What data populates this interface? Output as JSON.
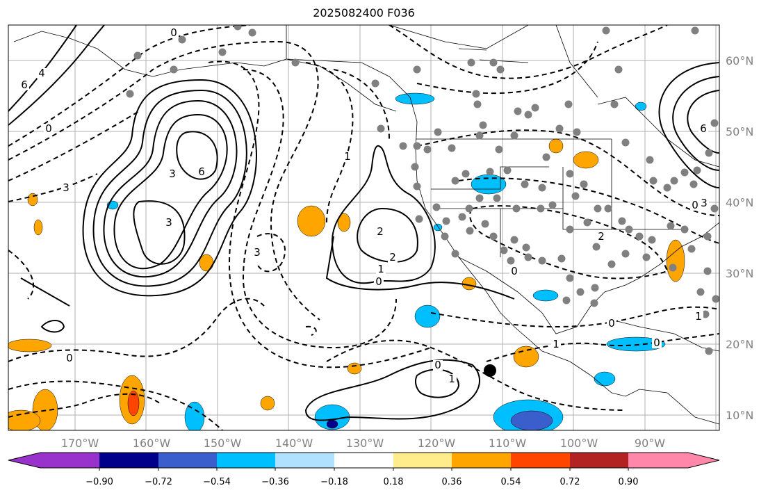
{
  "title": "2025082400 F036",
  "map": {
    "lon_labels": [
      "170°W",
      "160°W",
      "150°W",
      "140°W",
      "130°W",
      "120°W",
      "110°W",
      "100°W",
      "90°W"
    ],
    "lat_labels": [
      "60°N",
      "50°N",
      "40°N",
      "30°N",
      "20°N",
      "10°N"
    ],
    "contour_labels": [
      "6",
      "4",
      "0",
      "3",
      "3",
      "6",
      "3",
      "2",
      "2",
      "1",
      "0",
      "0",
      "0",
      "1",
      "2",
      "0",
      "3",
      "0",
      "0",
      "1",
      "0",
      "1",
      "6",
      "3",
      "1",
      "0"
    ],
    "marker": "black-dot"
  },
  "colorbar": {
    "colors": [
      "#9932cc",
      "#00008b",
      "#3a5fcd",
      "#00bfff",
      "#b0e2ff",
      "#ffffff",
      "#ffec8b",
      "#ffa500",
      "#ff4500",
      "#b22222",
      "#ff88aa"
    ],
    "ticks": [
      "−0.90",
      "−0.72",
      "−0.54",
      "−0.36",
      "−0.18",
      "0.18",
      "0.36",
      "0.54",
      "0.72",
      "0.90"
    ]
  }
}
